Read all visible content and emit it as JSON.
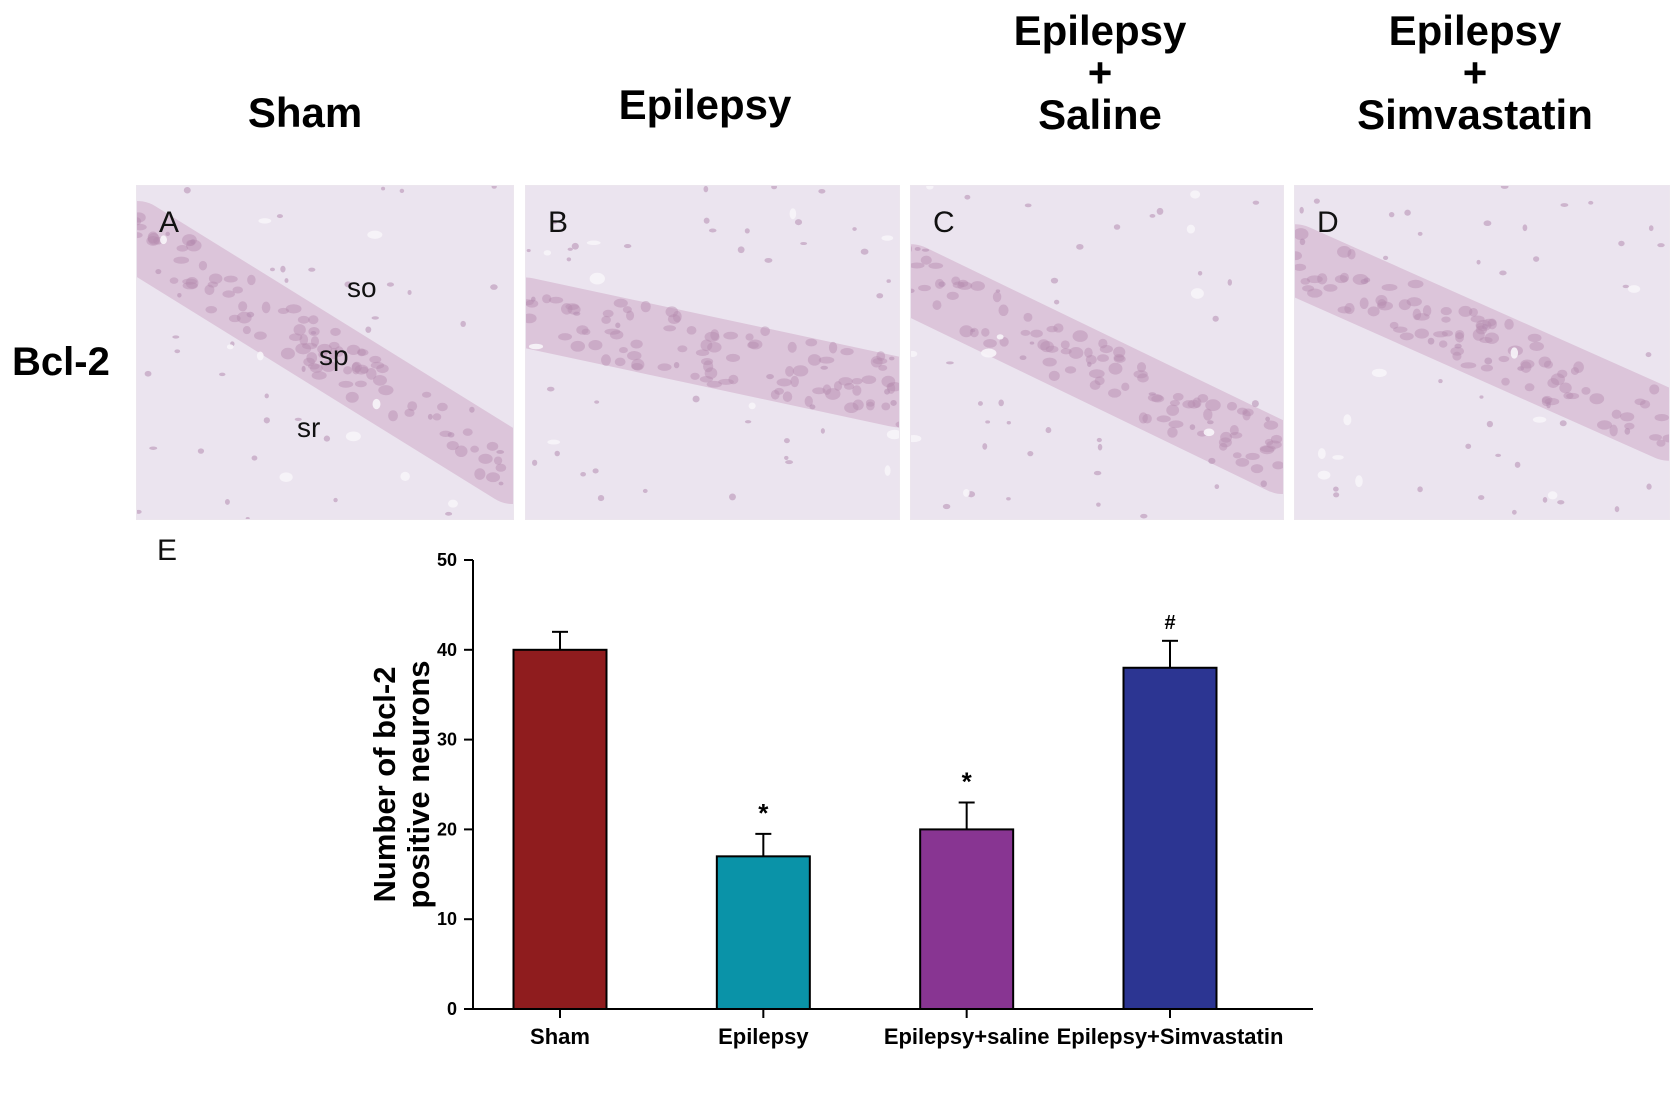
{
  "column_titles": [
    [
      "Sham"
    ],
    [
      "Epilepsy"
    ],
    [
      "Epilepsy",
      "+",
      "Saline"
    ],
    [
      "Epilepsy",
      "+",
      "Simvastatin"
    ]
  ],
  "row_label": "Bcl-2",
  "micrograph_panels": [
    {
      "letter": "A",
      "layer_labels": [
        "so",
        "sp",
        "sr"
      ]
    },
    {
      "letter": "B",
      "layer_labels": []
    },
    {
      "letter": "C",
      "layer_labels": []
    },
    {
      "letter": "D",
      "layer_labels": []
    }
  ],
  "tissue_colors": {
    "background": "#ebe4ef",
    "cell_layer": "#d6b9d2",
    "nuclei": "#b58cb0"
  },
  "chart_data": {
    "type": "bar",
    "panel_label": "E",
    "categories": [
      "Sham",
      "Epilepsy",
      "Epilepsy+saline",
      "Epilepsy+Simvastatin"
    ],
    "values": [
      40,
      17,
      20,
      38
    ],
    "errors": [
      2,
      2.5,
      3,
      3
    ],
    "annotations": [
      "",
      "*",
      "*",
      "#"
    ],
    "colors": [
      "#8f1c1e",
      "#0a93a8",
      "#883592",
      "#2c3592"
    ],
    "ylabel": [
      "Number of bcl-2",
      "positive neurons"
    ],
    "xlabel": "",
    "ylim": [
      0,
      50
    ],
    "yticks": [
      0,
      10,
      20,
      30,
      40,
      50
    ],
    "grid": false
  }
}
